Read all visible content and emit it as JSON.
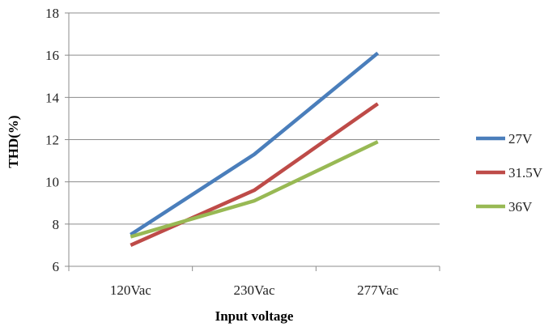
{
  "chart_data": {
    "type": "line",
    "title": "",
    "xlabel": "Input voltage",
    "ylabel": "THD(%)",
    "categories": [
      "120Vac",
      "230Vac",
      "277Vac"
    ],
    "ylim": [
      6,
      18
    ],
    "yticks": [
      6,
      8,
      10,
      12,
      14,
      16,
      18
    ],
    "grid": true,
    "legend_position": "right",
    "series": [
      {
        "name": "27V",
        "color": "#4a7ebb",
        "values": [
          7.5,
          11.3,
          16.1
        ]
      },
      {
        "name": "31.5V",
        "color": "#be4b48",
        "values": [
          7.0,
          9.6,
          13.7
        ]
      },
      {
        "name": "36V",
        "color": "#98b954",
        "values": [
          7.4,
          9.1,
          11.9
        ]
      }
    ]
  }
}
